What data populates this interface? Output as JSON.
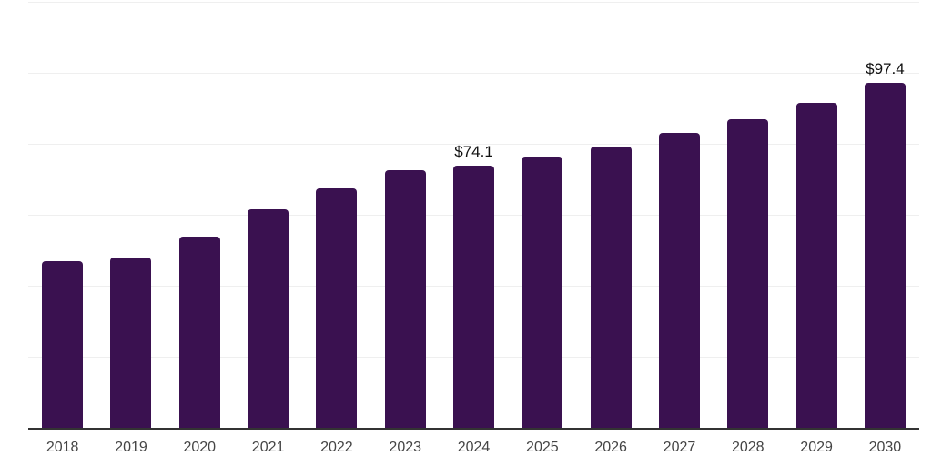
{
  "chart_data": {
    "type": "bar",
    "title": "",
    "xlabel": "",
    "ylabel": "",
    "categories": [
      "2018",
      "2019",
      "2020",
      "2021",
      "2022",
      "2023",
      "2024",
      "2025",
      "2026",
      "2027",
      "2028",
      "2029",
      "2030"
    ],
    "values": [
      47.2,
      48.1,
      54.0,
      61.7,
      67.6,
      72.7,
      74.1,
      76.5,
      79.5,
      83.3,
      87.1,
      91.8,
      97.4
    ],
    "value_labels": [
      "",
      "",
      "",
      "",
      "",
      "",
      "$74.1",
      "",
      "",
      "",
      "",
      "",
      "$97.4"
    ],
    "ylim": [
      0,
      120
    ],
    "gridline_step": 20,
    "grid_on": true,
    "legend": "none",
    "colors": {
      "bar": "#3a1150",
      "gridline": "#efefef",
      "axis_line": "#333333",
      "x_label_text": "#444444",
      "value_label_text": "#111111",
      "background": "#ffffff"
    }
  }
}
